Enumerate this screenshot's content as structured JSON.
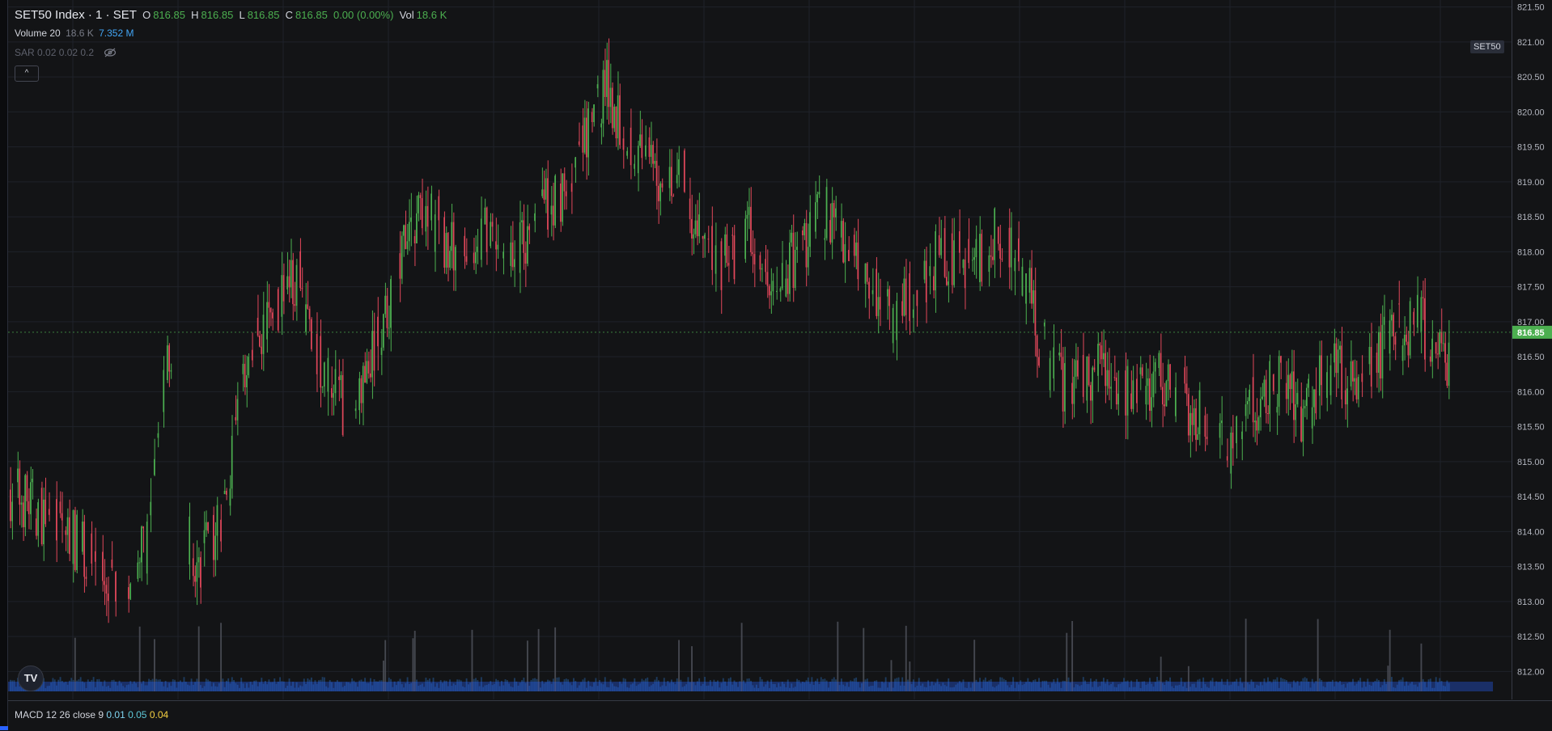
{
  "header": {
    "symbol": "SET50 Index · 1 · SET",
    "open_label": "O",
    "open": "816.85",
    "high_label": "H",
    "high": "816.85",
    "low_label": "L",
    "low": "816.85",
    "close_label": "C",
    "close": "816.85",
    "change": "0.00 (0.00%)",
    "vol_label": "Vol",
    "vol": "18.6 K"
  },
  "volume_legend": {
    "name": "Volume 20",
    "value1": "18.6 K",
    "value2": "7.352 M"
  },
  "sar_legend": {
    "name": "SAR 0.02 0.02 0.2"
  },
  "collapse_glyph": "^",
  "symbol_tag": "SET50",
  "logo_text": "TV",
  "macd_legend": {
    "name": "MACD 12 26 close 9",
    "v1": "0.01",
    "v2": "0.05",
    "v3": "0.04"
  },
  "colors": {
    "up": "#4caf50",
    "down": "#e0475a",
    "volume": "#2962ff",
    "background": "#131416",
    "grid": "#1f222a"
  },
  "chart_data": {
    "type": "candlestick",
    "ylim": [
      811.6,
      821.6
    ],
    "yticks": [
      812.0,
      812.5,
      813.0,
      813.5,
      814.0,
      814.5,
      815.0,
      815.5,
      816.0,
      816.5,
      817.0,
      817.5,
      818.0,
      818.5,
      819.0,
      819.5,
      820.0,
      820.5,
      821.0,
      821.5
    ],
    "ytick_labels": [
      "812.00",
      "812.50",
      "813.00",
      "813.50",
      "814.00",
      "814.50",
      "815.00",
      "815.50",
      "816.00",
      "816.50",
      "817.00",
      "817.50",
      "818.00",
      "818.50",
      "819.00",
      "819.50",
      "820.00",
      "820.50",
      "821.00",
      "821.50"
    ],
    "last_price": 816.85,
    "last_price_label": "816.85",
    "close_path": [
      [
        0,
        814.6
      ],
      [
        15,
        814.3
      ],
      [
        30,
        814.0
      ],
      [
        45,
        813.6
      ],
      [
        60,
        813.3
      ],
      [
        75,
        813.9
      ],
      [
        85,
        816.8
      ],
      [
        90,
        814.8
      ],
      [
        100,
        813.4
      ],
      [
        110,
        813.9
      ],
      [
        118,
        814.6
      ],
      [
        125,
        816.1
      ],
      [
        135,
        816.8
      ],
      [
        145,
        817.3
      ],
      [
        155,
        817.7
      ],
      [
        165,
        816.6
      ],
      [
        175,
        816.0
      ],
      [
        185,
        815.6
      ],
      [
        195,
        816.4
      ],
      [
        205,
        817.2
      ],
      [
        215,
        818.2
      ],
      [
        225,
        818.6
      ],
      [
        240,
        818.0
      ],
      [
        255,
        818.3
      ],
      [
        270,
        817.8
      ],
      [
        285,
        818.5
      ],
      [
        300,
        818.9
      ],
      [
        312,
        819.6
      ],
      [
        322,
        820.4
      ],
      [
        330,
        819.9
      ],
      [
        340,
        819.4
      ],
      [
        352,
        819.0
      ],
      [
        362,
        819.2
      ],
      [
        372,
        818.3
      ],
      [
        385,
        817.8
      ],
      [
        400,
        818.2
      ],
      [
        412,
        817.4
      ],
      [
        425,
        817.9
      ],
      [
        440,
        818.6
      ],
      [
        455,
        818.1
      ],
      [
        470,
        817.4
      ],
      [
        480,
        817.0
      ],
      [
        490,
        817.5
      ],
      [
        505,
        818.0
      ],
      [
        520,
        817.8
      ],
      [
        535,
        818.3
      ],
      [
        550,
        817.6
      ],
      [
        558,
        816.7
      ],
      [
        565,
        816.2
      ],
      [
        575,
        816.1
      ],
      [
        590,
        816.3
      ],
      [
        605,
        816.0
      ],
      [
        620,
        816.2
      ],
      [
        635,
        815.9
      ],
      [
        650,
        815.4
      ],
      [
        660,
        815.2
      ],
      [
        670,
        815.7
      ],
      [
        680,
        816.0
      ],
      [
        690,
        816.2
      ],
      [
        700,
        815.6
      ],
      [
        715,
        816.4
      ],
      [
        730,
        816.1
      ],
      [
        745,
        816.7
      ],
      [
        760,
        817.0
      ],
      [
        770,
        816.8
      ],
      [
        779,
        816.5
      ]
    ],
    "volume_note": ""
  }
}
